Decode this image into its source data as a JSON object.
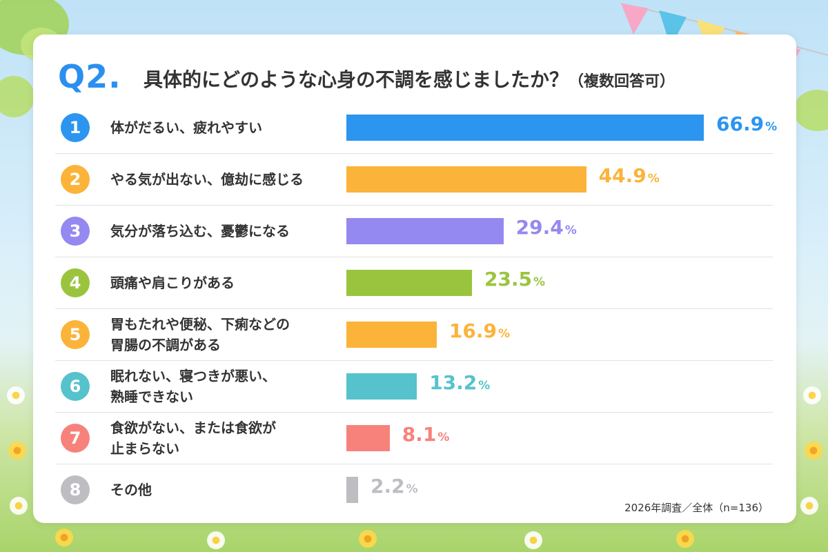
{
  "header": {
    "mark": "Q2.",
    "title": "具体的にどのような心身の不調を感じましたか？",
    "note": "（複数回答可）"
  },
  "footnote": "2026年調査／全体（n=136）",
  "chart_data": {
    "type": "bar",
    "orientation": "horizontal",
    "title": "具体的にどのような心身の不調を感じましたか？（複数回答可）",
    "unit": "%",
    "xlim": [
      0,
      66.9
    ],
    "grid": false,
    "categories": [
      "体がだるい、疲れやすい",
      "やる気が出ない、億劫に感じる",
      "気分が落ち込む、憂鬱になる",
      "頭痛や肩こりがある",
      "胃もたれや便秘、下痢などの\n胃腸の不調がある",
      "眠れない、寝つきが悪い、\n熟睡できない",
      "食欲がない、または食欲が\n止まらない",
      "その他"
    ],
    "ranks": [
      "1",
      "2",
      "3",
      "4",
      "5",
      "6",
      "7",
      "8"
    ],
    "values": [
      66.9,
      44.9,
      29.4,
      23.5,
      16.9,
      13.2,
      8.1,
      2.2
    ],
    "colors": [
      "#2b95f0",
      "#fbb33a",
      "#9489f0",
      "#9bc43e",
      "#fbb33a",
      "#56c2cc",
      "#f7827b",
      "#bdbdc2"
    ]
  }
}
